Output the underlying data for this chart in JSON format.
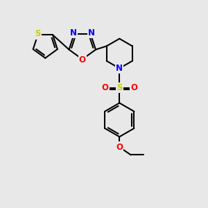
{
  "background_color": "#e8e8e8",
  "bond_color": "#000000",
  "bond_width": 1.5,
  "atom_colors": {
    "S_thio": "#cccc00",
    "S_sulfonyl": "#cccc00",
    "N": "#0000ff",
    "O": "#ff0000",
    "C": "#000000"
  },
  "font_size": 8.5,
  "bg": "#e8e8e8"
}
